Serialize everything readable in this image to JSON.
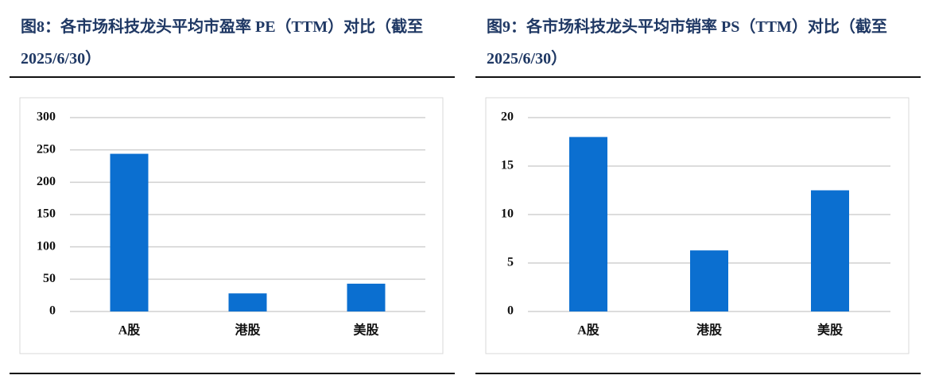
{
  "chart_data": [
    {
      "type": "bar",
      "title": "图8：各市场科技龙头平均市盈率 PE（TTM）对比（截至 2025/6/30）",
      "categories": [
        "A股",
        "港股",
        "美股"
      ],
      "values": [
        244,
        28,
        43
      ],
      "color": "#0b6fd0",
      "ylim": [
        0,
        300
      ],
      "yticks": [
        0,
        50,
        100,
        150,
        200,
        250,
        300
      ],
      "grid": true
    },
    {
      "type": "bar",
      "title": "图9：各市场科技龙头平均市销率 PS（TTM）对比（截至 2025/6/30）",
      "categories": [
        "A股",
        "港股",
        "美股"
      ],
      "values": [
        18,
        6.3,
        12.5
      ],
      "color": "#0b6fd0",
      "ylim": [
        0,
        20
      ],
      "yticks": [
        0,
        5,
        10,
        15,
        20
      ],
      "grid": true
    }
  ]
}
